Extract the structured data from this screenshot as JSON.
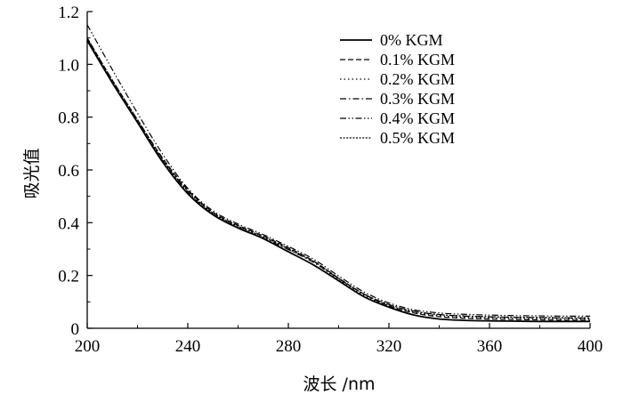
{
  "chart_data": {
    "type": "line",
    "xlabel": "波长 /nm",
    "ylabel": "吸光值",
    "xlim": [
      200,
      400
    ],
    "ylim": [
      0,
      1.2
    ],
    "x_ticks": [
      200,
      240,
      280,
      320,
      360,
      400
    ],
    "x_tick_labels": [
      "200",
      "240",
      "280",
      "320",
      "360",
      "400"
    ],
    "y_ticks": [
      0,
      0.2,
      0.4,
      0.6,
      0.8,
      1.0,
      1.2
    ],
    "y_tick_labels": [
      "0",
      "0.2",
      "0.4",
      "0.6",
      "0.8",
      "1.0",
      "1.2"
    ],
    "grid": false,
    "legend_position": "top-right",
    "x": [
      200,
      210,
      220,
      230,
      240,
      250,
      260,
      270,
      280,
      290,
      300,
      310,
      320,
      330,
      340,
      350,
      360,
      370,
      380,
      390,
      400
    ],
    "series": [
      {
        "name": "0% KGM",
        "style": "solid",
        "values": [
          1.09,
          0.93,
          0.78,
          0.63,
          0.51,
          0.43,
          0.38,
          0.34,
          0.29,
          0.24,
          0.18,
          0.12,
          0.08,
          0.05,
          0.035,
          0.03,
          0.028,
          0.027,
          0.026,
          0.026,
          0.026
        ]
      },
      {
        "name": "0.1% KGM",
        "style": "dashed",
        "values": [
          1.1,
          0.94,
          0.79,
          0.645,
          0.525,
          0.44,
          0.39,
          0.35,
          0.305,
          0.255,
          0.19,
          0.13,
          0.085,
          0.058,
          0.044,
          0.038,
          0.035,
          0.033,
          0.032,
          0.031,
          0.031
        ]
      },
      {
        "name": "0.2% KGM",
        "style": "dotted",
        "values": [
          1.1,
          0.935,
          0.785,
          0.64,
          0.52,
          0.435,
          0.385,
          0.345,
          0.3,
          0.25,
          0.185,
          0.125,
          0.085,
          0.06,
          0.048,
          0.042,
          0.04,
          0.038,
          0.037,
          0.036,
          0.035
        ]
      },
      {
        "name": "0.3% KGM",
        "style": "dashdot",
        "values": [
          1.095,
          0.93,
          0.78,
          0.635,
          0.515,
          0.432,
          0.382,
          0.342,
          0.298,
          0.25,
          0.188,
          0.13,
          0.09,
          0.065,
          0.052,
          0.046,
          0.043,
          0.041,
          0.04,
          0.039,
          0.038
        ]
      },
      {
        "name": "0.4% KGM",
        "style": "dashdotdot",
        "values": [
          1.15,
          0.98,
          0.815,
          0.66,
          0.53,
          0.445,
          0.395,
          0.355,
          0.31,
          0.262,
          0.198,
          0.138,
          0.096,
          0.07,
          0.058,
          0.053,
          0.05,
          0.048,
          0.047,
          0.046,
          0.046
        ]
      },
      {
        "name": "0.5% KGM",
        "style": "densedot",
        "values": [
          1.1,
          0.94,
          0.79,
          0.64,
          0.52,
          0.437,
          0.387,
          0.347,
          0.302,
          0.254,
          0.19,
          0.13,
          0.09,
          0.064,
          0.052,
          0.047,
          0.044,
          0.042,
          0.041,
          0.04,
          0.04
        ]
      }
    ]
  }
}
